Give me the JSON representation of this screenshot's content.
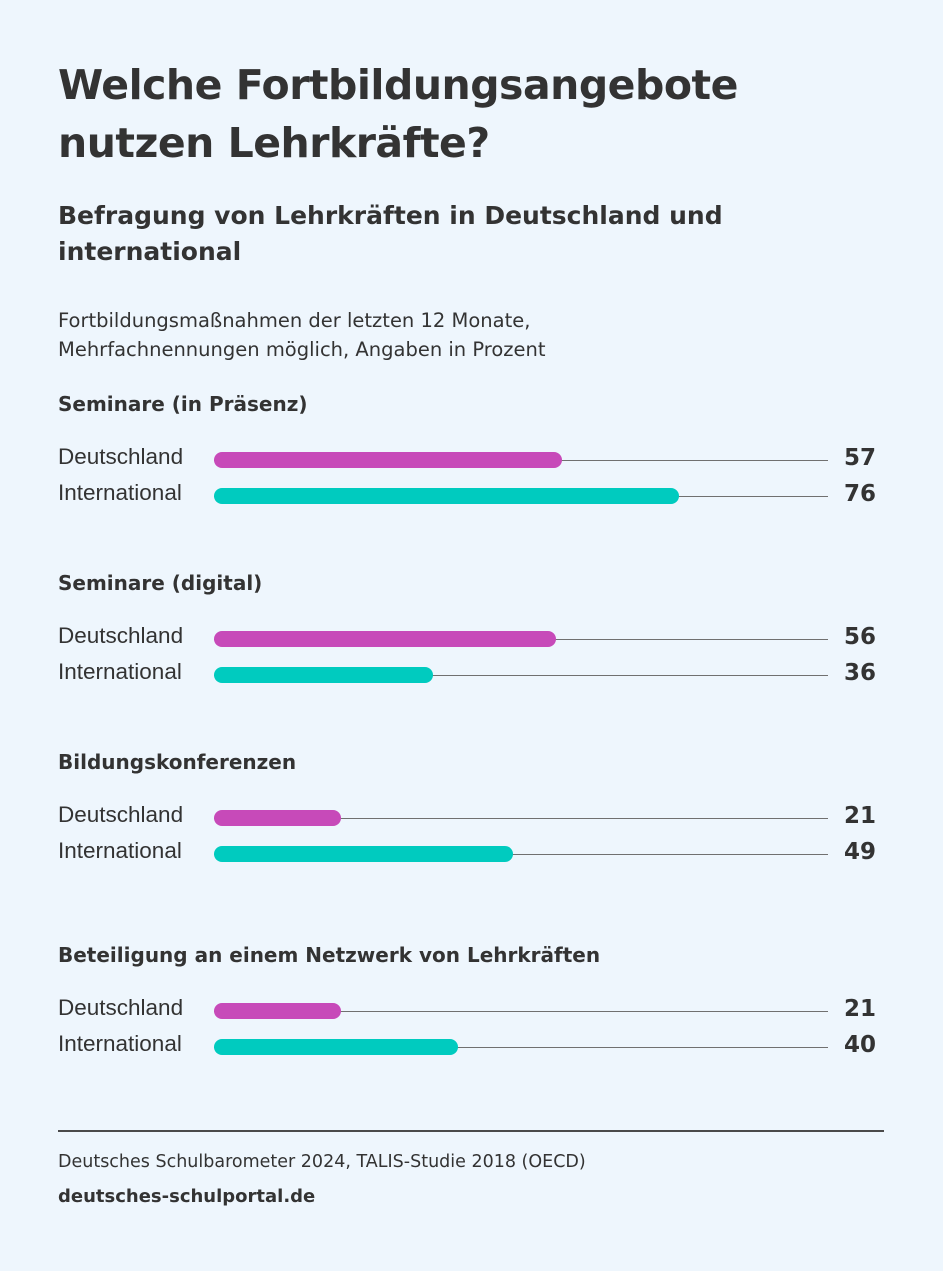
{
  "header": {
    "title": "Welche Fortbildungsangebote nutzen Lehrkräfte?",
    "subtitle": "Befragung von Lehrkräften in Deutschland und international",
    "note_line1": "Fortbildungsmaßnahmen der letzten 12 Monate,",
    "note_line2": "Mehrfachnennungen möglich, Angaben in Prozent"
  },
  "footer": {
    "source": "Deutsches Schulbarometer 2024, TALIS-Studie 2018 (OECD)",
    "site": "deutsches-schulportal.de"
  },
  "colors": {
    "deutschland": "#c74ab9",
    "international": "#00cbbf"
  },
  "chart_data": {
    "type": "bar",
    "orientation": "horizontal",
    "xlim": [
      0,
      100
    ],
    "grid": false,
    "unit": "Prozent",
    "groups": [
      {
        "title": "Seminare (in Präsenz)",
        "rows": [
          {
            "label": "Deutschland",
            "value": 57
          },
          {
            "label": "International",
            "value": 76
          }
        ]
      },
      {
        "title": "Seminare (digital)",
        "rows": [
          {
            "label": "Deutschland",
            "value": 56
          },
          {
            "label": "International",
            "value": 36
          }
        ]
      },
      {
        "title": "Bildungskonferenzen",
        "rows": [
          {
            "label": "Deutschland",
            "value": 21
          },
          {
            "label": "International",
            "value": 49
          }
        ]
      },
      {
        "title": "Beteiligung an einem Netzwerk von Lehrkräften",
        "rows": [
          {
            "label": "Deutschland",
            "value": 21
          },
          {
            "label": "International",
            "value": 40
          }
        ]
      }
    ]
  }
}
